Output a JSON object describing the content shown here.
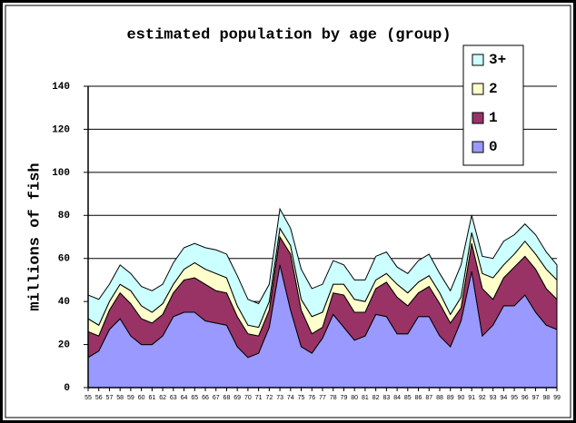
{
  "chart_data": {
    "type": "stacked_area",
    "title": "estimated population by age (group)",
    "y_label": "millions of fish",
    "categories": [
      "55",
      "56",
      "57",
      "58",
      "59",
      "60",
      "61",
      "62",
      "63",
      "64",
      "65",
      "66",
      "67",
      "68",
      "69",
      "70",
      "71",
      "72",
      "73",
      "74",
      "75",
      "76",
      "77",
      "78",
      "79",
      "80",
      "81",
      "82",
      "83",
      "84",
      "85",
      "86",
      "87",
      "88",
      "89",
      "90",
      "91",
      "92",
      "93",
      "94",
      "95",
      "96",
      "97",
      "98",
      "99"
    ],
    "series": [
      {
        "name": "0",
        "color": "#9999ff",
        "values": [
          14,
          17,
          27,
          32,
          24,
          20,
          20,
          24,
          33,
          35,
          35,
          31,
          30,
          29,
          19,
          14,
          16,
          28,
          57,
          36,
          19,
          16,
          23,
          34,
          28,
          22,
          24,
          34,
          33,
          25,
          25,
          33,
          33,
          24,
          19,
          31,
          54,
          24,
          29,
          38,
          38,
          43,
          35,
          29,
          27
        ]
      },
      {
        "name": "1",
        "color": "#993366",
        "values": [
          12,
          7,
          9,
          12,
          15,
          12,
          10,
          10,
          11,
          15,
          16,
          17,
          15,
          15,
          14,
          11,
          8,
          8,
          13,
          26,
          17,
          9,
          5,
          10,
          15,
          13,
          11,
          12,
          16,
          17,
          13,
          11,
          14,
          15,
          11,
          6,
          13,
          22,
          12,
          13,
          18,
          18,
          20,
          17,
          14
        ]
      },
      {
        "name": "2",
        "color": "#ffffcc",
        "values": [
          6,
          5,
          4,
          4,
          6,
          6,
          5,
          5,
          4,
          5,
          7,
          7,
          8,
          7,
          5,
          4,
          4,
          4,
          4,
          4,
          5,
          8,
          7,
          4,
          5,
          6,
          5,
          4,
          4,
          6,
          6,
          5,
          5,
          5,
          4,
          5,
          5,
          7,
          10,
          6,
          6,
          7,
          7,
          9,
          9
        ]
      },
      {
        "name": "3+",
        "color": "#ccffff",
        "values": [
          11,
          12,
          8,
          9,
          8,
          9,
          10,
          9,
          10,
          10,
          9,
          10,
          11,
          11,
          14,
          12,
          11,
          8,
          9,
          8,
          14,
          13,
          13,
          11,
          9,
          9,
          10,
          11,
          10,
          8,
          9,
          10,
          10,
          9,
          11,
          15,
          8,
          8,
          9,
          11,
          9,
          8,
          9,
          8,
          7
        ]
      }
    ],
    "ylim": [
      0,
      140
    ],
    "yticks": [
      0,
      20,
      40,
      60,
      80,
      100,
      120,
      140
    ],
    "grid": true,
    "legend": "top-right"
  }
}
